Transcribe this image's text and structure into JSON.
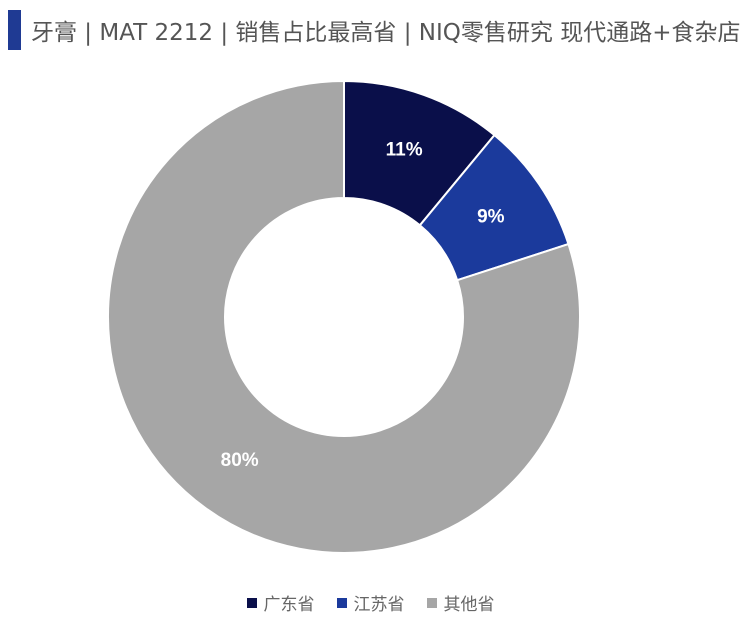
{
  "title": "牙膏 | MAT 2212 | 销售占比最高省 | NIQ零售研究 现代通路+食杂店",
  "colors": {
    "accent": "#1f3a93"
  },
  "chart_data": {
    "type": "pie",
    "variant": "donut",
    "title": "牙膏 | MAT 2212 | 销售占比最高省 | NIQ零售研究 现代通路+食杂店",
    "series": [
      {
        "name": "广东省",
        "value": 11,
        "label": "11%",
        "color": "#0a0f4a"
      },
      {
        "name": "江苏省",
        "value": 9,
        "label": "9%",
        "color": "#1b3a9c"
      },
      {
        "name": "其他省",
        "value": 80,
        "label": "80%",
        "color": "#a6a6a6"
      }
    ],
    "legend_position": "bottom",
    "start_angle": "12 o'clock",
    "direction": "clockwise"
  }
}
